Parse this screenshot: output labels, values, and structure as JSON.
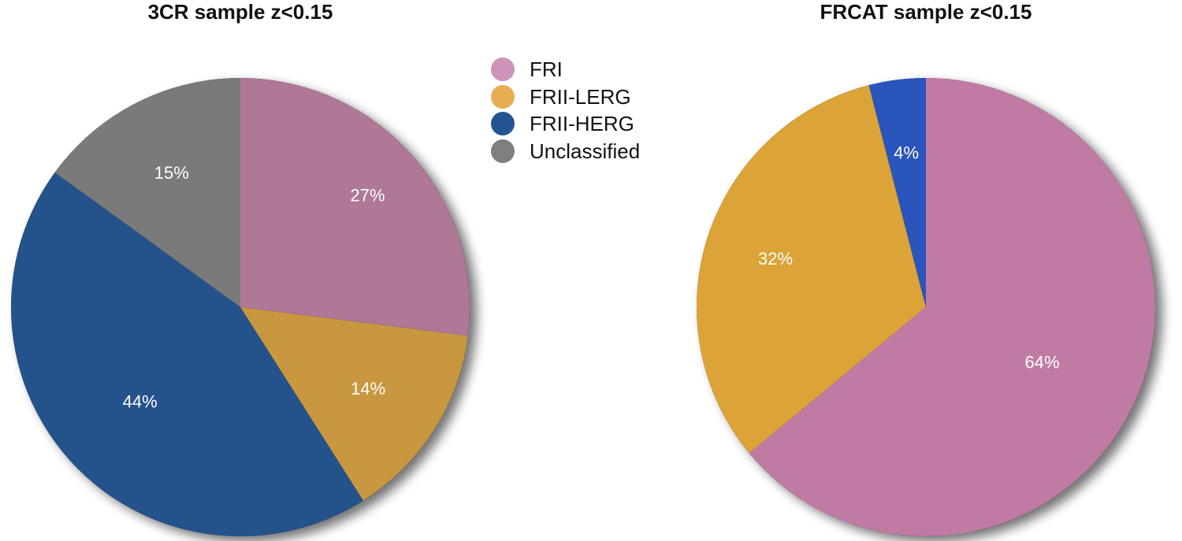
{
  "legend": {
    "items": [
      {
        "label": "FRI",
        "color": "#cd93b8"
      },
      {
        "label": "FRII-LERG",
        "color": "#e7ad52"
      },
      {
        "label": "FRII-HERG",
        "color": "#245494"
      },
      {
        "label": "Unclassified",
        "color": "#7f7f7f"
      }
    ]
  },
  "chart_data": [
    {
      "type": "pie",
      "title": "3CR sample z<0.15",
      "categories": [
        "FRI",
        "FRII-LERG",
        "FRII-HERG",
        "Unclassified"
      ],
      "values": [
        27,
        14,
        44,
        15
      ],
      "labels": [
        "27%",
        "14%",
        "44%",
        "15%"
      ],
      "colors": [
        "#ae7896",
        "#c9973f",
        "#24538c",
        "#7a7a7a"
      ],
      "start_angle_deg": 0,
      "direction": "clockwise"
    },
    {
      "type": "pie",
      "title": "FRCAT sample z<0.15",
      "categories": [
        "FRI",
        "FRII-LERG",
        "FRII-HERG"
      ],
      "values": [
        64,
        32,
        4
      ],
      "labels": [
        "64%",
        "32%",
        "4%"
      ],
      "colors": [
        "#c07ba4",
        "#dba338",
        "#2a55bd"
      ],
      "start_angle_deg": 0,
      "direction": "clockwise"
    }
  ]
}
